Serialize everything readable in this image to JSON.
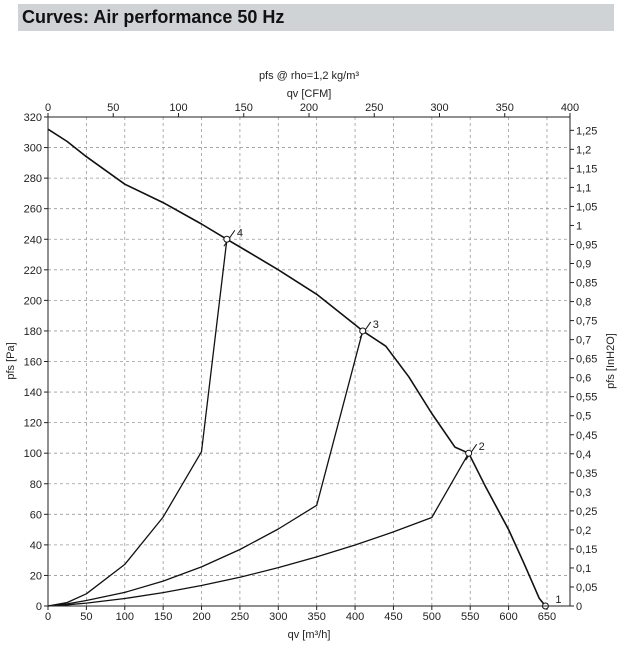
{
  "header": {
    "title": "Curves: Air performance 50 Hz"
  },
  "chart_data": {
    "type": "line",
    "title": "pfs @ rho=1,2 kg/m³",
    "xlabel": "qv [m³/h]",
    "x2label": "qv [CFM]",
    "ylabel": "pfs [Pa]",
    "y2label": "pfs [InH2O]",
    "xlim": [
      0,
      680
    ],
    "ylim": [
      0,
      320
    ],
    "x2lim": [
      0,
      400
    ],
    "y2lim": [
      0,
      1.285
    ],
    "grid": true,
    "x_ticks": [
      0,
      50,
      100,
      150,
      200,
      250,
      300,
      350,
      400,
      450,
      500,
      550,
      600,
      650
    ],
    "x_tick_labels": [
      "0",
      "50",
      "100",
      "150",
      "200",
      "250",
      "300",
      "350",
      "400",
      "450",
      "500",
      "550",
      "600",
      "650"
    ],
    "y_ticks": [
      0,
      20,
      40,
      60,
      80,
      100,
      120,
      140,
      160,
      180,
      200,
      220,
      240,
      260,
      280,
      300,
      320
    ],
    "y_tick_labels": [
      "0",
      "20",
      "40",
      "60",
      "80",
      "100",
      "120",
      "140",
      "160",
      "180",
      "200",
      "220",
      "240",
      "260",
      "280",
      "300",
      "320"
    ],
    "x2_ticks": [
      0,
      50,
      100,
      150,
      200,
      250,
      300,
      350,
      400
    ],
    "x2_tick_labels": [
      "0",
      "50",
      "100",
      "150",
      "200",
      "250",
      "300",
      "350",
      "400"
    ],
    "y2_ticks": [
      0,
      0.05,
      0.1,
      0.15,
      0.2,
      0.25,
      0.3,
      0.35,
      0.4,
      0.45,
      0.5,
      0.55,
      0.6,
      0.65,
      0.7,
      0.75,
      0.8,
      0.85,
      0.9,
      0.95,
      1,
      1.05,
      1.1,
      1.15,
      1.2,
      1.25
    ],
    "y2_tick_labels": [
      "0",
      "0,05",
      "0,1",
      "0,15",
      "0,2",
      "0,25",
      "0,3",
      "0,35",
      "0,4",
      "0,45",
      "0,5",
      "0,55",
      "0,6",
      "0,65",
      "0,7",
      "0,75",
      "0,8",
      "0,85",
      "0,9",
      "0,95",
      "1",
      "1,05",
      "1,1",
      "1,15",
      "1,2",
      "1,25"
    ],
    "series": [
      {
        "values": [
          [
            0,
            312
          ],
          [
            25,
            304
          ],
          [
            50,
            294
          ],
          [
            100,
            276
          ],
          [
            150,
            264
          ],
          [
            200,
            250
          ],
          [
            233,
            240
          ],
          [
            260,
            232
          ],
          [
            300,
            220
          ],
          [
            350,
            204
          ],
          [
            400,
            184
          ],
          [
            410,
            180
          ],
          [
            440,
            170
          ],
          [
            470,
            150
          ],
          [
            500,
            126
          ],
          [
            530,
            104
          ],
          [
            548,
            100
          ],
          [
            570,
            78
          ],
          [
            600,
            50
          ],
          [
            620,
            28
          ],
          [
            640,
            5
          ],
          [
            648,
            0
          ]
        ]
      },
      {
        "values": [
          [
            0,
            0
          ],
          [
            25,
            0.8
          ],
          [
            50,
            1.9
          ],
          [
            100,
            4.9
          ],
          [
            150,
            8.8
          ],
          [
            200,
            13.4
          ],
          [
            250,
            18.8
          ],
          [
            300,
            25.1
          ],
          [
            350,
            32.1
          ],
          [
            400,
            39.9
          ],
          [
            450,
            48.5
          ],
          [
            500,
            57.9
          ],
          [
            548,
            100
          ]
        ]
      },
      {
        "values": [
          [
            0,
            0
          ],
          [
            25,
            1.4
          ],
          [
            50,
            3.6
          ],
          [
            100,
            8.9
          ],
          [
            150,
            16.3
          ],
          [
            200,
            25.6
          ],
          [
            250,
            37.0
          ],
          [
            300,
            50.4
          ],
          [
            350,
            65.9
          ],
          [
            410,
            180
          ]
        ]
      },
      {
        "values": [
          [
            0,
            0
          ],
          [
            25,
            2.3
          ],
          [
            50,
            8.0
          ],
          [
            100,
            27.2
          ],
          [
            150,
            58.2
          ],
          [
            200,
            101
          ],
          [
            233,
            240
          ]
        ]
      }
    ],
    "points": [
      {
        "label": "1",
        "x": 648,
        "y": 0
      },
      {
        "label": "2",
        "x": 548,
        "y": 100
      },
      {
        "label": "3",
        "x": 410,
        "y": 180
      },
      {
        "label": "4",
        "x": 233,
        "y": 240
      }
    ]
  }
}
